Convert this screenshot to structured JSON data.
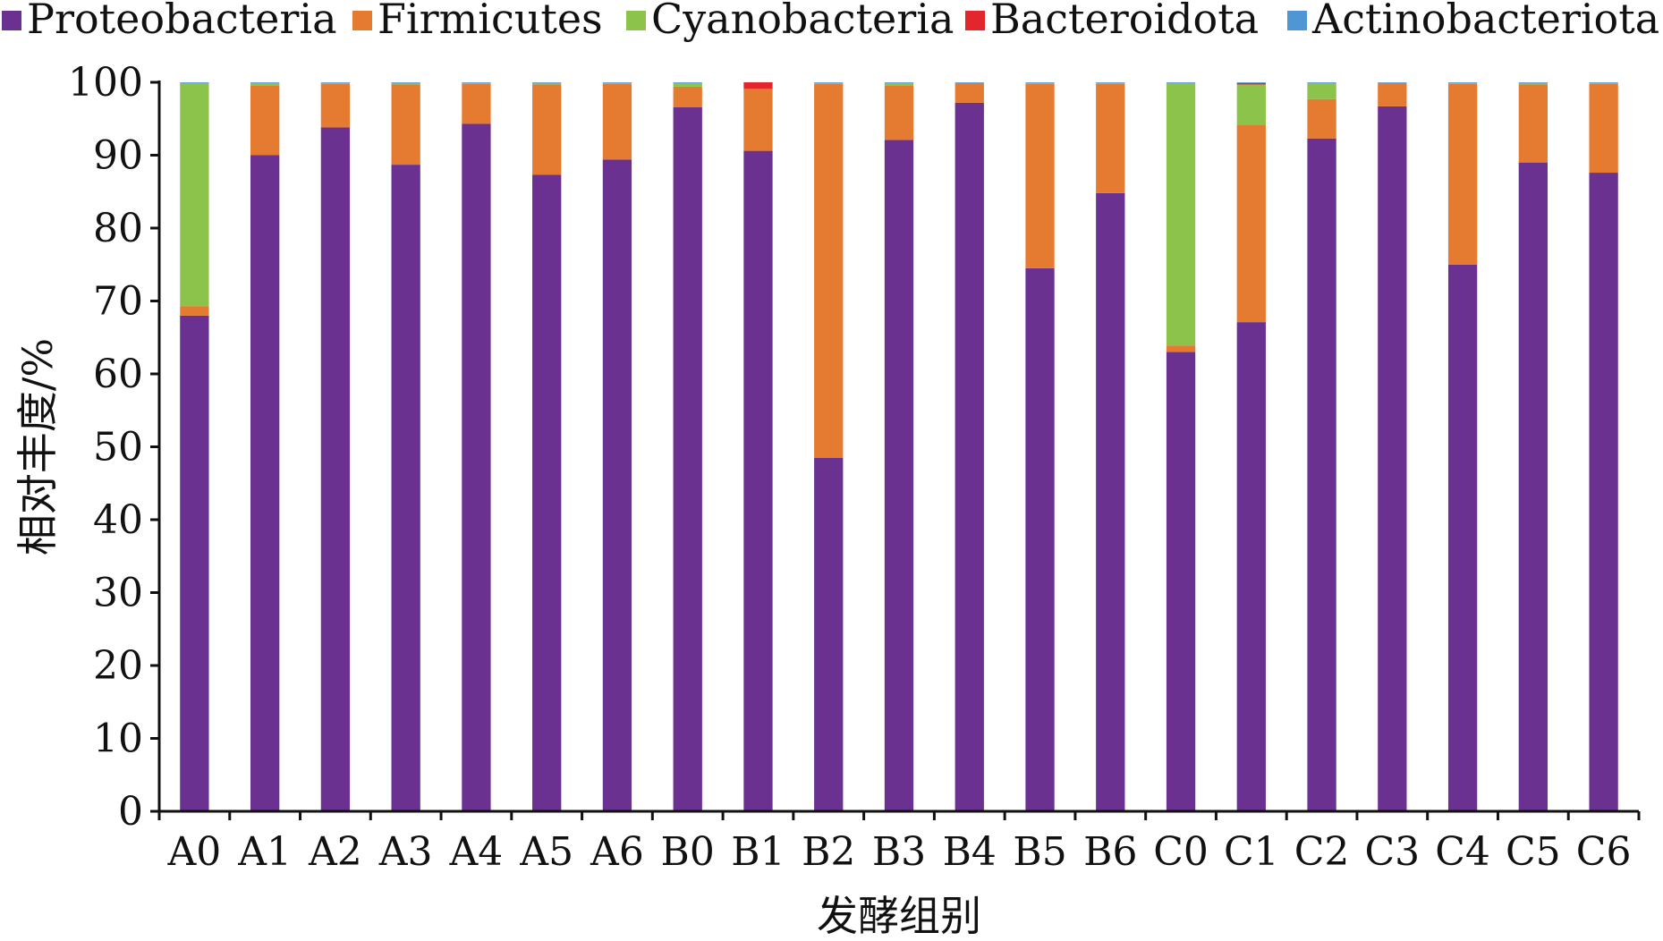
{
  "chart_data": {
    "type": "bar",
    "stacked": true,
    "title": "",
    "xlabel": "发酵组别",
    "ylabel": "相对丰度/%",
    "ylim": [
      0,
      100
    ],
    "yticks": [
      0,
      10,
      20,
      30,
      40,
      50,
      60,
      70,
      80,
      90,
      100
    ],
    "grid": false,
    "legend_position": "top",
    "categories": [
      "A0",
      "A1",
      "A2",
      "A3",
      "A4",
      "A5",
      "A6",
      "B0",
      "B1",
      "B2",
      "B3",
      "B4",
      "B5",
      "B6",
      "C0",
      "C1",
      "C2",
      "C3",
      "C4",
      "C5",
      "C6"
    ],
    "series": [
      {
        "name": "Proteobacteria",
        "color": "#6a3190",
        "values": [
          68.0,
          90.0,
          93.8,
          88.7,
          94.3,
          87.3,
          89.4,
          96.6,
          90.6,
          48.5,
          92.1,
          97.2,
          74.5,
          84.8,
          63.0,
          67.1,
          92.3,
          96.7,
          75.0,
          89.0,
          87.6
        ]
      },
      {
        "name": "Firmicutes",
        "color": "#e57a31",
        "values": [
          1.3,
          9.6,
          6.0,
          11.0,
          5.5,
          12.4,
          10.4,
          2.8,
          8.5,
          51.3,
          7.5,
          2.7,
          25.3,
          15.0,
          0.9,
          27.1,
          5.4,
          3.2,
          24.8,
          10.7,
          12.2
        ]
      },
      {
        "name": "Cyanobacteria",
        "color": "#8cc34a",
        "values": [
          30.6,
          0.3,
          0.1,
          0.2,
          0.1,
          0.2,
          0.1,
          0.5,
          0.0,
          0.1,
          0.3,
          0.0,
          0.1,
          0.1,
          36.0,
          5.5,
          2.2,
          0.0,
          0.1,
          0.2,
          0.1
        ]
      },
      {
        "name": "Bacteroidota",
        "color": "#e3262b",
        "values": [
          0.0,
          0.0,
          0.0,
          0.0,
          0.0,
          0.0,
          0.0,
          0.0,
          0.9,
          0.0,
          0.0,
          0.0,
          0.0,
          0.0,
          0.0,
          0.2,
          0.0,
          0.0,
          0.0,
          0.0,
          0.0
        ]
      },
      {
        "name": "Actinobacteriota",
        "color": "#4f97d4",
        "values": [
          0.1,
          0.1,
          0.1,
          0.1,
          0.1,
          0.1,
          0.1,
          0.1,
          0.0,
          0.1,
          0.1,
          0.1,
          0.1,
          0.1,
          0.1,
          0.1,
          0.1,
          0.1,
          0.1,
          0.1,
          0.1
        ]
      }
    ]
  }
}
